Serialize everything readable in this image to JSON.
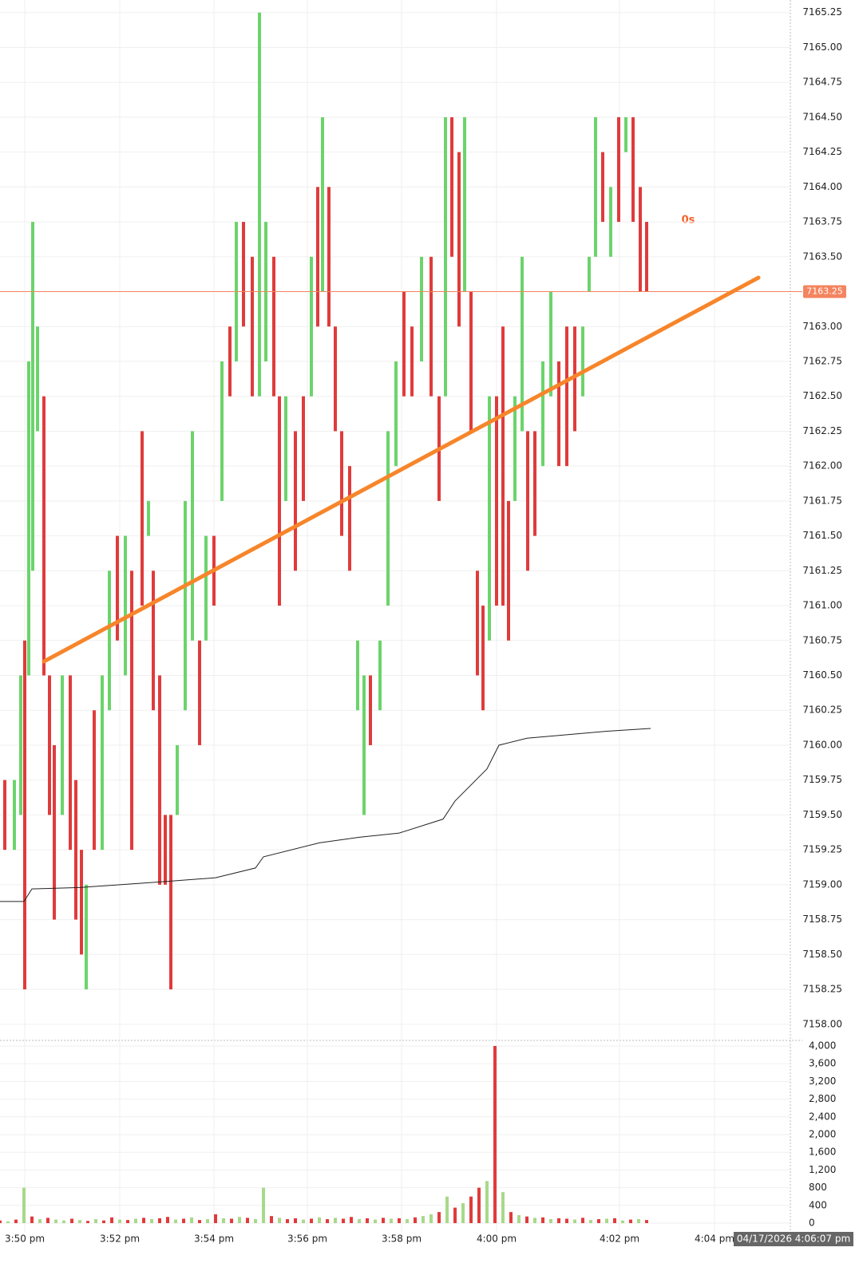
{
  "chart_data": {
    "type": "tick-bars",
    "up_color": "#6bd46b",
    "down_color": "#e03b3b",
    "xlim": [
      0,
      1000
    ],
    "ylim": [
      7157.89,
      7165.34
    ],
    "xticks": [
      {
        "value": 31,
        "label": "3:50 pm"
      },
      {
        "value": 150,
        "label": "3:52 pm"
      },
      {
        "value": 268,
        "label": "3:54 pm"
      },
      {
        "value": 385,
        "label": "3:56 pm"
      },
      {
        "value": 503,
        "label": "3:58 pm"
      },
      {
        "value": 622,
        "label": "4:00 pm"
      },
      {
        "value": 776,
        "label": "4:02 pm"
      },
      {
        "value": 895,
        "label": "4:04 pm"
      }
    ],
    "yticks": [
      {
        "value": 7158,
        "label": "7158.00"
      },
      7158.25,
      {
        "value": 7158.5,
        "label": "7158.50"
      },
      7158.75,
      {
        "value": 7159,
        "label": "7159.00"
      },
      7159.25,
      {
        "value": 7159.5,
        "label": "7159.50"
      },
      7159.75,
      {
        "value": 7160,
        "label": "7160.00"
      },
      7160.25,
      {
        "value": 7160.5,
        "label": "7160.50"
      },
      7160.75,
      {
        "value": 7161,
        "label": "7161.00"
      },
      7161.25,
      {
        "value": 7161.5,
        "label": "7161.50"
      },
      7161.75,
      {
        "value": 7162,
        "label": "7162.00"
      },
      7162.25,
      {
        "value": 7162.5,
        "label": "7162.50"
      },
      7162.75,
      {
        "value": 7163,
        "label": "7163.00"
      },
      {
        "value": 7163.5,
        "label": "7163.50"
      },
      7163.75,
      {
        "value": 7164,
        "label": "7164.00"
      },
      7164.25,
      {
        "value": 7164.5,
        "label": "7164.50"
      },
      7164.75,
      {
        "value": 7165,
        "label": "7165.00"
      },
      7165.25
    ],
    "grid": true,
    "bars": {
      "x": [
        6,
        18,
        26,
        31,
        36,
        41,
        47,
        55,
        62,
        68,
        78,
        88,
        95,
        102,
        108,
        118,
        128,
        137,
        147,
        157,
        165,
        178,
        186,
        192,
        200,
        207,
        214,
        222,
        232,
        241,
        250,
        258,
        268,
        278,
        288,
        296,
        305,
        316,
        325,
        333,
        343,
        350,
        358,
        370,
        380,
        390,
        398,
        404,
        412,
        420,
        428,
        438,
        448,
        456,
        464,
        476,
        486,
        496,
        506,
        516,
        528,
        540,
        550,
        558,
        566,
        575,
        582,
        590,
        598,
        605,
        613,
        622,
        630,
        637,
        645,
        654,
        661,
        670,
        680,
        690,
        700,
        710,
        720,
        730,
        738,
        746,
        755,
        765,
        775,
        784,
        793,
        802,
        810
      ],
      "low": [
        7159.25,
        7159.25,
        7159.5,
        7158.25,
        7160.5,
        7161.25,
        7162.25,
        7160.5,
        7159.5,
        7158.75,
        7159.5,
        7159.25,
        7158.75,
        7158.5,
        7158.25,
        7159.25,
        7159.25,
        7160.25,
        7160.75,
        7160.5,
        7159.25,
        7161,
        7161.5,
        7160.25,
        7159,
        7159,
        7158.25,
        7159.5,
        7160.25,
        7160.75,
        7160,
        7160.75,
        7161,
        7161.75,
        7162.5,
        7162.75,
        7163,
        7162.5,
        7162.5,
        7162.75,
        7162.5,
        7161,
        7161.75,
        7161.25,
        7161.75,
        7162.5,
        7163,
        7163.25,
        7163,
        7162.25,
        7161.5,
        7161.25,
        7160.25,
        7159.5,
        7160,
        7160.25,
        7161,
        7162,
        7162.5,
        7162.5,
        7162.75,
        7162.5,
        7161.75,
        7162.5,
        7163.5,
        7163,
        7163.25,
        7162.25,
        7160.5,
        7160.25,
        7160.75,
        7161,
        7161,
        7160.75,
        7161.75,
        7162.25,
        7161.25,
        7161.5,
        7162,
        7162.5,
        7162,
        7162,
        7162.25,
        7162.5,
        7163.25,
        7163.5,
        7163.75,
        7163.5,
        7163.75,
        7164.25,
        7163.75,
        7163.25,
        7163.25
      ],
      "high": [
        7159.75,
        7159.75,
        7160.5,
        7160.75,
        7162.75,
        7163.75,
        7163,
        7162.5,
        7160.5,
        7160,
        7160.5,
        7160.5,
        7159.75,
        7159.25,
        7159,
        7160.25,
        7160.5,
        7161.25,
        7161.5,
        7161.5,
        7161.25,
        7162.25,
        7161.75,
        7161.25,
        7160.5,
        7159.5,
        7159.5,
        7160,
        7161.75,
        7162.25,
        7160.75,
        7161.5,
        7161.5,
        7162.75,
        7163,
        7163.75,
        7163.75,
        7163.5,
        7165.25,
        7163.75,
        7163.5,
        7162.5,
        7162.5,
        7162.25,
        7162.5,
        7163.5,
        7164,
        7164.5,
        7164,
        7163,
        7162.25,
        7162,
        7160.75,
        7160.5,
        7160.5,
        7160.75,
        7162.25,
        7162.75,
        7163.25,
        7163,
        7163.5,
        7163.5,
        7162.5,
        7164.5,
        7164.5,
        7164.25,
        7164.5,
        7163.25,
        7161.25,
        7161,
        7162.5,
        7162.5,
        7163,
        7161.75,
        7162.5,
        7163.5,
        7162.25,
        7162.25,
        7162.75,
        7163.25,
        7162.75,
        7163,
        7163,
        7163,
        7163.5,
        7164.5,
        7164.25,
        7164,
        7164.5,
        7164.5,
        7164.5,
        7164,
        7163.75
      ],
      "up": [
        false,
        true,
        true,
        false,
        true,
        true,
        true,
        false,
        false,
        false,
        true,
        false,
        false,
        false,
        true,
        false,
        true,
        true,
        false,
        true,
        false,
        false,
        true,
        false,
        false,
        false,
        false,
        true,
        true,
        true,
        false,
        true,
        false,
        true,
        false,
        true,
        false,
        false,
        true,
        true,
        false,
        false,
        true,
        false,
        false,
        true,
        false,
        true,
        false,
        false,
        false,
        false,
        true,
        true,
        false,
        true,
        true,
        true,
        false,
        false,
        true,
        false,
        false,
        true,
        false,
        false,
        true,
        false,
        false,
        false,
        true,
        false,
        false,
        false,
        true,
        true,
        false,
        false,
        true,
        true,
        false,
        false,
        false,
        true,
        true,
        true,
        false,
        true,
        false,
        true,
        false,
        false,
        false
      ]
    },
    "vwap": {
      "color": "#222222",
      "x": [
        0,
        30,
        40,
        100,
        200,
        270,
        320,
        330,
        400,
        450,
        500,
        555,
        570,
        610,
        625,
        660,
        700,
        760,
        815
      ],
      "values": [
        7158.88,
        7158.88,
        7158.97,
        7158.98,
        7159.02,
        7159.05,
        7159.12,
        7159.2,
        7159.3,
        7159.34,
        7159.37,
        7159.47,
        7159.6,
        7159.83,
        7160,
        7160.05,
        7160.07,
        7160.1,
        7160.12
      ]
    },
    "trend_line": {
      "color": "#f7852a",
      "x": [
        55,
        950
      ],
      "values": [
        7160.6,
        7163.35
      ]
    },
    "last_price": 7163.25,
    "last_price_color": "#f4845f",
    "countdown_label": "0s",
    "cursor_time_label": "04/17/2026 4:06:07 pm",
    "volume": {
      "ylim": [
        -216,
        4108
      ],
      "yticks": [
        0,
        400,
        800,
        {
          "value": 1200,
          "label": "1,200"
        },
        {
          "value": 1600,
          "label": "1,600"
        },
        {
          "value": 2000,
          "label": "2,000"
        },
        {
          "value": 2400,
          "label": "2,400"
        },
        {
          "value": 2800,
          "label": "2,800"
        },
        {
          "value": 3200,
          "label": "3,200"
        },
        {
          "value": 3600,
          "label": "3,600"
        },
        {
          "value": 4000,
          "label": "4,000"
        }
      ],
      "x": [
        0,
        10,
        20,
        30,
        40,
        50,
        60,
        70,
        80,
        90,
        100,
        110,
        120,
        130,
        140,
        150,
        160,
        170,
        180,
        190,
        200,
        210,
        220,
        230,
        240,
        250,
        260,
        270,
        280,
        290,
        300,
        310,
        320,
        330,
        340,
        350,
        360,
        370,
        380,
        390,
        400,
        410,
        420,
        430,
        440,
        450,
        460,
        470,
        480,
        490,
        500,
        510,
        520,
        530,
        540,
        550,
        560,
        570,
        580,
        590,
        600,
        610,
        620,
        630,
        640,
        650,
        660,
        670,
        680,
        690,
        700,
        710,
        720,
        730,
        740,
        750,
        760,
        770,
        780,
        790,
        800,
        810
      ],
      "values": [
        60,
        40,
        80,
        800,
        150,
        90,
        120,
        80,
        60,
        100,
        70,
        50,
        90,
        60,
        130,
        80,
        70,
        100,
        120,
        90,
        110,
        140,
        80,
        100,
        130,
        70,
        90,
        200,
        110,
        100,
        140,
        120,
        90,
        800,
        160,
        120,
        90,
        110,
        80,
        100,
        130,
        90,
        120,
        100,
        140,
        90,
        110,
        80,
        120,
        100,
        110,
        90,
        130,
        160,
        200,
        250,
        600,
        350,
        450,
        600,
        800,
        950,
        4000,
        700,
        250,
        180,
        150,
        120,
        130,
        90,
        110,
        100,
        80,
        120,
        70,
        90,
        100,
        110,
        60,
        80,
        90,
        70
      ],
      "up": [
        false,
        true,
        false,
        true,
        false,
        true,
        false,
        true,
        true,
        false,
        true,
        false,
        true,
        false,
        false,
        true,
        false,
        true,
        false,
        true,
        false,
        false,
        true,
        false,
        true,
        false,
        true,
        false,
        true,
        false,
        true,
        false,
        true,
        true,
        false,
        true,
        false,
        false,
        true,
        false,
        true,
        false,
        true,
        false,
        false,
        true,
        false,
        true,
        false,
        true,
        false,
        true,
        false,
        true,
        true,
        false,
        true,
        false,
        true,
        false,
        false,
        true,
        false,
        true,
        false,
        true,
        false,
        true,
        false,
        true,
        false,
        false,
        true,
        false,
        true,
        false,
        true,
        false,
        true,
        false,
        true,
        false
      ]
    }
  }
}
